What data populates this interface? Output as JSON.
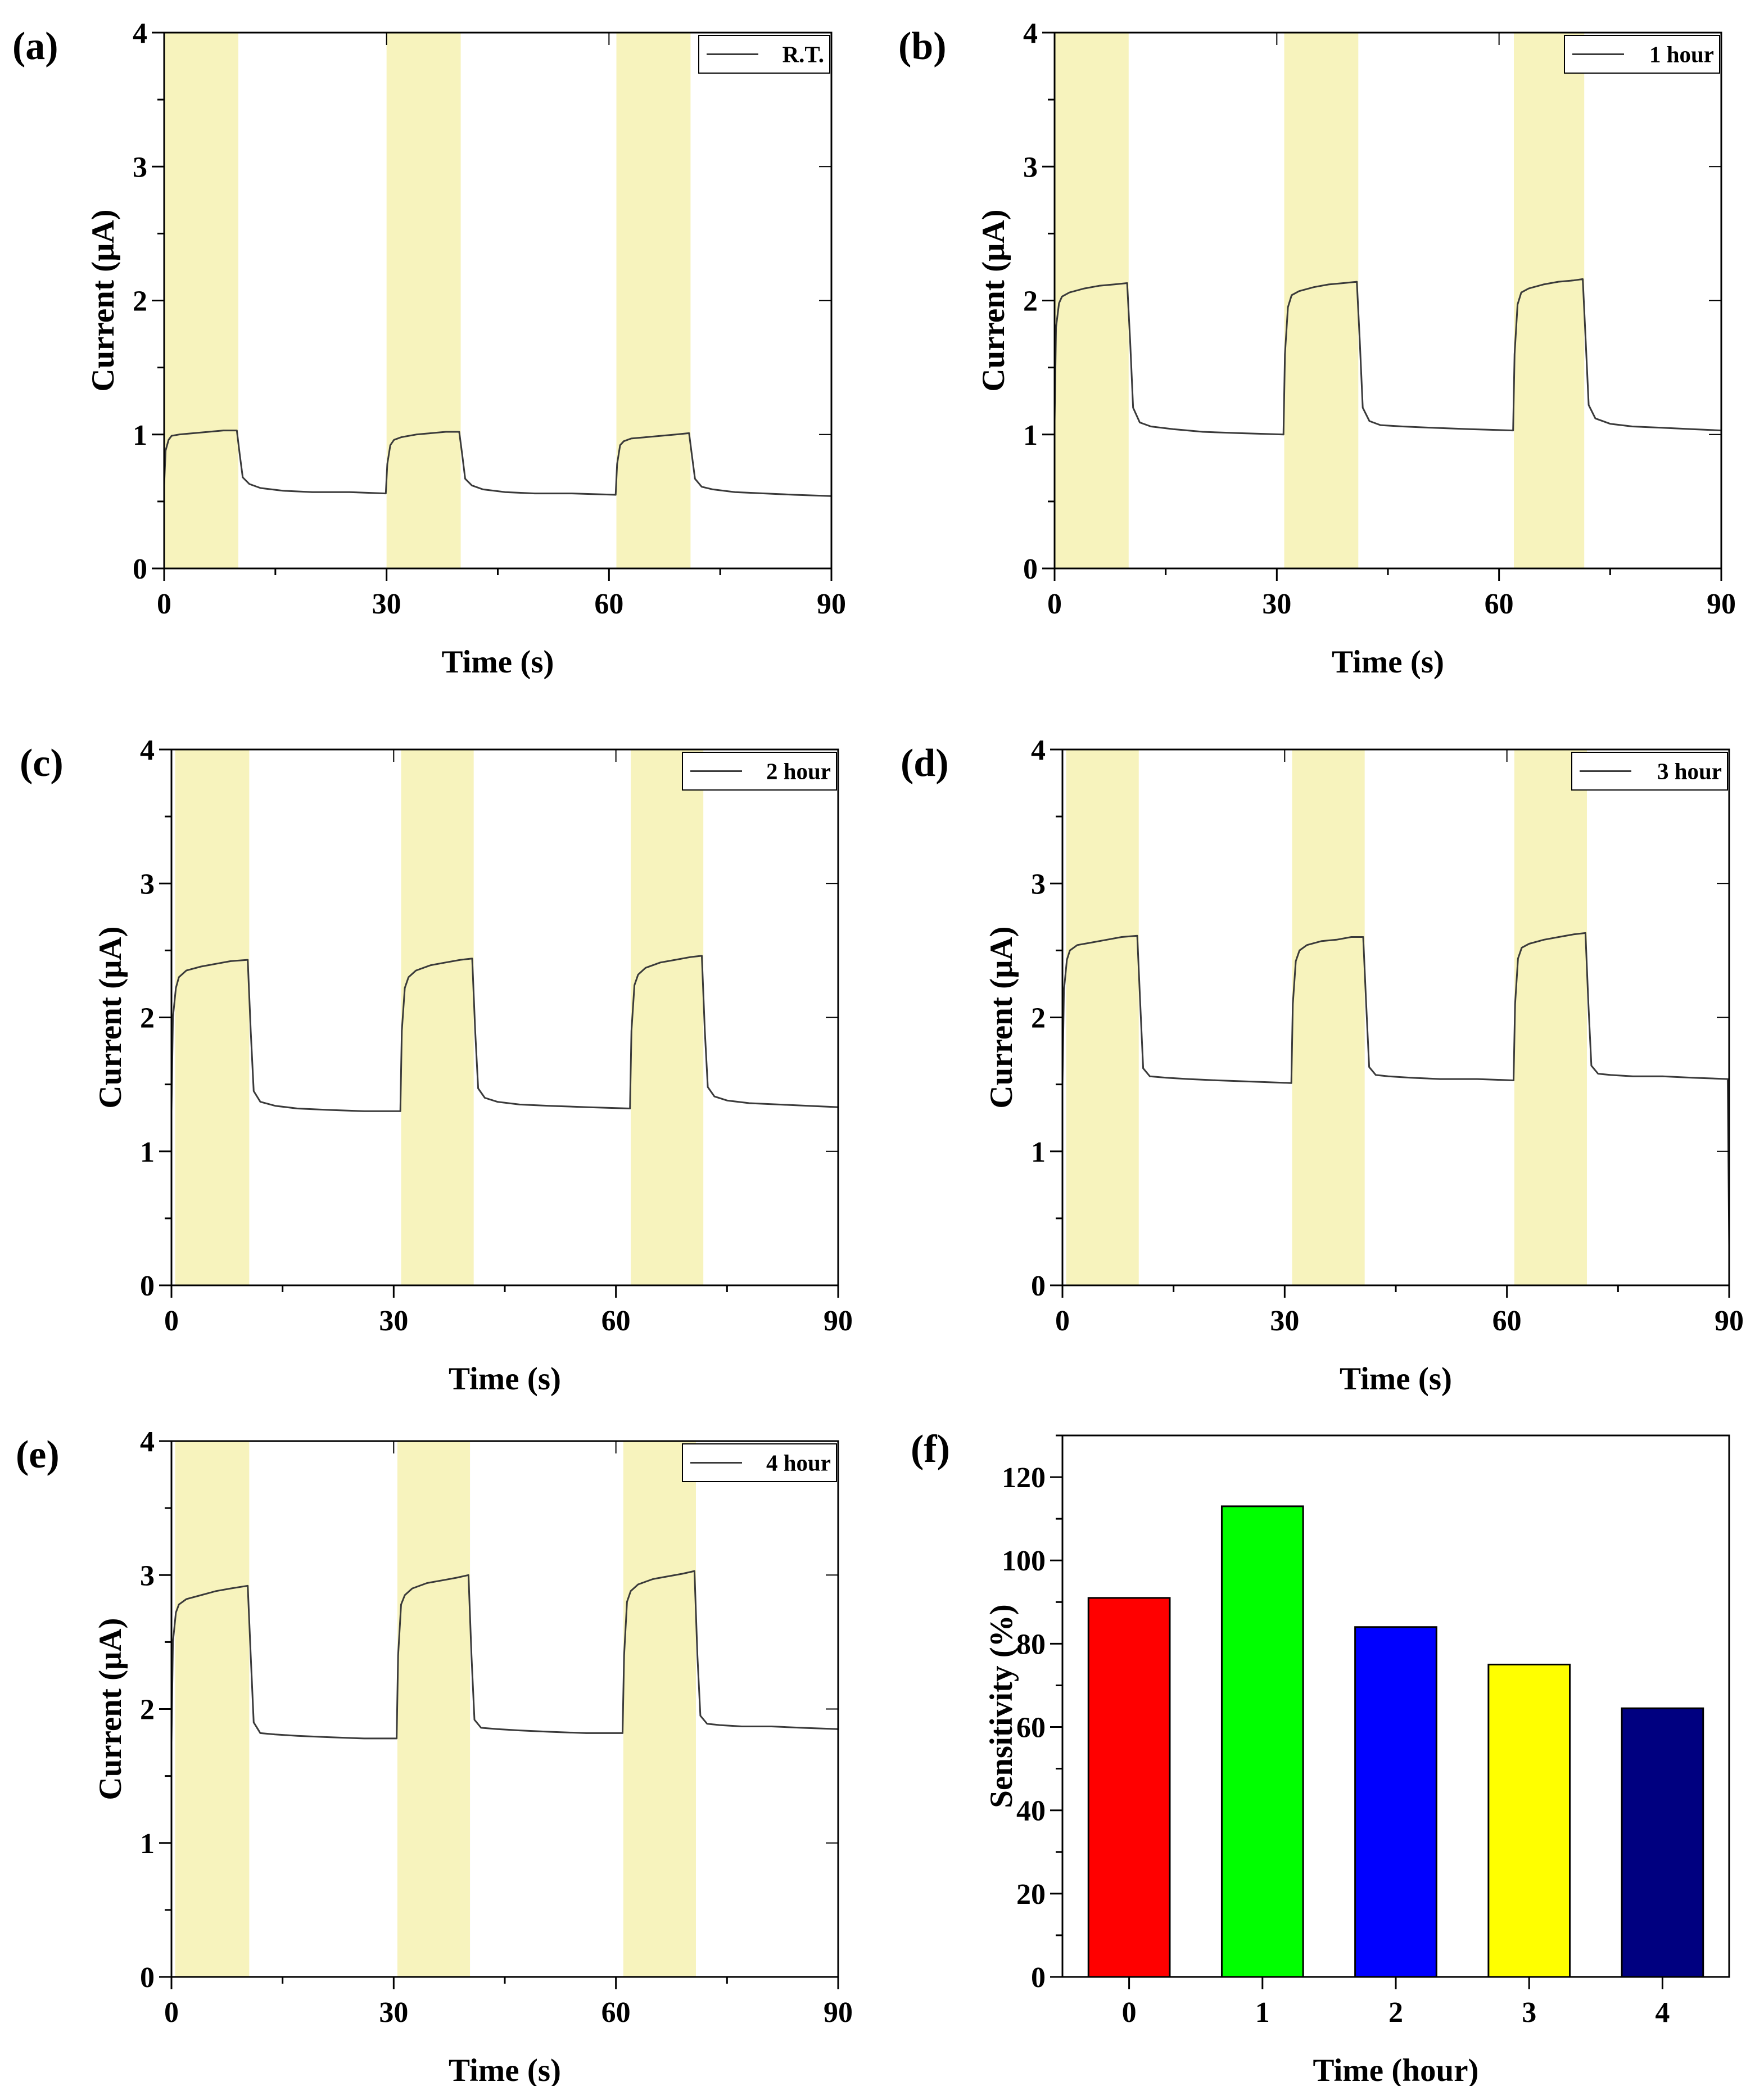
{
  "chart_data": [
    {
      "type": "line",
      "panel": "(a)",
      "legend": "R.T.",
      "xlabel": "Time (s)",
      "ylabel": "Current (μA)",
      "xlim": [
        0,
        90
      ],
      "ylim": [
        0,
        4
      ],
      "xticks": [
        "0",
        "30",
        "60",
        "90"
      ],
      "yticks": [
        "0",
        "1",
        "2",
        "3",
        "4"
      ],
      "light_on": [
        [
          0,
          10
        ],
        [
          30,
          40
        ],
        [
          61,
          71
        ]
      ],
      "series": [
        {
          "name": "R.T.",
          "x": [
            0,
            0.2,
            0.6,
            1,
            2,
            4,
            6,
            8,
            9.8,
            10.2,
            10.6,
            11.5,
            13,
            16,
            20,
            25,
            29.9,
            30.1,
            30.5,
            31,
            32,
            34,
            36,
            38,
            39.8,
            40.2,
            40.6,
            41.5,
            43,
            46,
            50,
            55,
            60.9,
            61.1,
            61.5,
            62,
            63,
            65,
            67,
            69,
            70.8,
            71.2,
            71.6,
            72.5,
            74,
            77,
            81,
            85,
            90
          ],
          "y": [
            0.62,
            0.88,
            0.96,
            0.99,
            1.0,
            1.01,
            1.02,
            1.03,
            1.03,
            0.85,
            0.68,
            0.63,
            0.6,
            0.58,
            0.57,
            0.57,
            0.56,
            0.78,
            0.92,
            0.96,
            0.98,
            1.0,
            1.01,
            1.02,
            1.02,
            0.85,
            0.67,
            0.62,
            0.59,
            0.57,
            0.56,
            0.56,
            0.55,
            0.78,
            0.92,
            0.95,
            0.97,
            0.98,
            0.99,
            1.0,
            1.01,
            0.84,
            0.67,
            0.61,
            0.59,
            0.57,
            0.56,
            0.55,
            0.54
          ]
        }
      ]
    },
    {
      "type": "line",
      "panel": "(b)",
      "legend": "1 hour",
      "xlabel": "Time (s)",
      "ylabel": "Current (μA)",
      "xlim": [
        0,
        90
      ],
      "ylim": [
        0,
        4
      ],
      "xticks": [
        "0",
        "30",
        "60",
        "90"
      ],
      "yticks": [
        "0",
        "1",
        "2",
        "3",
        "4"
      ],
      "light_on": [
        [
          0,
          10
        ],
        [
          31,
          41
        ],
        [
          62,
          71.5
        ]
      ],
      "series": [
        {
          "name": "1 hour",
          "x": [
            0,
            0.2,
            0.6,
            1,
            2,
            4,
            6,
            8,
            9.8,
            10.2,
            10.6,
            11.5,
            13,
            16,
            20,
            25,
            30.9,
            31.1,
            31.5,
            32,
            33,
            35,
            37,
            39,
            40.8,
            41.2,
            41.6,
            42.5,
            44,
            47,
            51,
            56,
            61.9,
            62.1,
            62.5,
            63,
            64,
            66,
            68,
            70,
            71.3,
            71.7,
            72.1,
            73,
            75,
            78,
            82,
            86,
            90
          ],
          "y": [
            1.1,
            1.8,
            1.98,
            2.03,
            2.06,
            2.09,
            2.11,
            2.12,
            2.13,
            1.7,
            1.2,
            1.09,
            1.06,
            1.04,
            1.02,
            1.01,
            1.0,
            1.6,
            1.95,
            2.04,
            2.07,
            2.1,
            2.12,
            2.13,
            2.14,
            1.7,
            1.2,
            1.1,
            1.07,
            1.06,
            1.05,
            1.04,
            1.03,
            1.6,
            1.97,
            2.06,
            2.09,
            2.12,
            2.14,
            2.15,
            2.16,
            1.7,
            1.22,
            1.12,
            1.08,
            1.06,
            1.05,
            1.04,
            1.03
          ]
        }
      ]
    },
    {
      "type": "line",
      "panel": "(c)",
      "legend": "2 hour",
      "xlabel": "Time (s)",
      "ylabel": "Current (μA)",
      "xlim": [
        0,
        90
      ],
      "ylim": [
        0,
        4
      ],
      "xticks": [
        "0",
        "30",
        "60",
        "90"
      ],
      "yticks": [
        "0",
        "1",
        "2",
        "3",
        "4"
      ],
      "light_on": [
        [
          0.5,
          10.5
        ],
        [
          31,
          40.8
        ],
        [
          62,
          71.8
        ]
      ],
      "series": [
        {
          "name": "2 hour",
          "x": [
            0,
            0.2,
            0.6,
            1,
            2,
            4,
            6,
            8,
            10.3,
            10.7,
            11.1,
            12,
            14,
            17,
            21,
            26,
            30.9,
            31.1,
            31.5,
            32,
            33,
            35,
            37,
            39,
            40.6,
            41,
            41.4,
            42.3,
            44,
            47,
            51,
            56,
            61.9,
            62.1,
            62.5,
            63,
            64,
            66,
            68,
            70,
            71.6,
            72,
            72.4,
            73.3,
            75,
            78,
            82,
            86,
            90
          ],
          "y": [
            1.3,
            2.0,
            2.22,
            2.3,
            2.35,
            2.38,
            2.4,
            2.42,
            2.43,
            1.9,
            1.45,
            1.37,
            1.34,
            1.32,
            1.31,
            1.3,
            1.3,
            1.9,
            2.22,
            2.3,
            2.35,
            2.39,
            2.41,
            2.43,
            2.44,
            1.9,
            1.47,
            1.4,
            1.37,
            1.35,
            1.34,
            1.33,
            1.32,
            1.9,
            2.24,
            2.32,
            2.37,
            2.41,
            2.43,
            2.45,
            2.46,
            1.9,
            1.48,
            1.41,
            1.38,
            1.36,
            1.35,
            1.34,
            1.33
          ]
        }
      ]
    },
    {
      "type": "line",
      "panel": "(d)",
      "legend": "3 hour",
      "xlabel": "Time (s)",
      "ylabel": "Current (μA)",
      "xlim": [
        0,
        90
      ],
      "ylim": [
        0,
        4
      ],
      "xticks": [
        "0",
        "30",
        "60",
        "90"
      ],
      "yticks": [
        "0",
        "1",
        "2",
        "3",
        "4"
      ],
      "light_on": [
        [
          0.5,
          10.3
        ],
        [
          31,
          40.8
        ],
        [
          61,
          70.8
        ]
      ],
      "series": [
        {
          "name": "3 hour",
          "x": [
            0,
            0.2,
            0.6,
            1,
            2,
            4,
            6,
            8,
            10.1,
            10.5,
            10.9,
            11.8,
            14,
            17,
            21,
            26,
            30.9,
            31.1,
            31.5,
            32,
            33,
            35,
            37,
            39,
            40.6,
            41,
            41.4,
            42.3,
            44,
            47,
            51,
            56,
            60.9,
            61.1,
            61.5,
            62,
            63,
            65,
            67,
            69,
            70.6,
            71,
            71.4,
            72.3,
            74,
            77,
            81,
            85,
            89.8,
            90
          ],
          "y": [
            1.5,
            2.2,
            2.43,
            2.5,
            2.54,
            2.56,
            2.58,
            2.6,
            2.61,
            2.1,
            1.62,
            1.56,
            1.55,
            1.54,
            1.53,
            1.52,
            1.51,
            2.1,
            2.42,
            2.5,
            2.54,
            2.57,
            2.58,
            2.6,
            2.6,
            2.1,
            1.63,
            1.57,
            1.56,
            1.55,
            1.54,
            1.54,
            1.53,
            2.1,
            2.44,
            2.52,
            2.55,
            2.58,
            2.6,
            2.62,
            2.63,
            2.1,
            1.64,
            1.58,
            1.57,
            1.56,
            1.56,
            1.55,
            1.54,
            0.3
          ]
        }
      ]
    },
    {
      "type": "line",
      "panel": "(e)",
      "legend": "4 hour",
      "xlabel": "Time (s)",
      "ylabel": "Current (μA)",
      "xlim": [
        0,
        90
      ],
      "ylim": [
        0,
        4
      ],
      "xticks": [
        "0",
        "30",
        "60",
        "90"
      ],
      "yticks": [
        "0",
        "1",
        "2",
        "3",
        "4"
      ],
      "light_on": [
        [
          0.5,
          10.5
        ],
        [
          30.5,
          40.3
        ],
        [
          61,
          70.8
        ]
      ],
      "series": [
        {
          "name": "4 hour",
          "x": [
            0,
            0.2,
            0.6,
            1,
            2,
            4,
            6,
            8,
            10.3,
            10.7,
            11.1,
            12,
            14,
            17,
            21,
            26,
            30.4,
            30.6,
            31,
            31.5,
            32.5,
            34.5,
            36.5,
            38.5,
            40.1,
            40.5,
            40.9,
            41.8,
            44,
            47,
            51,
            56,
            60.9,
            61.1,
            61.5,
            62,
            63,
            65,
            67,
            69,
            70.6,
            71,
            71.4,
            72.3,
            74,
            77,
            81,
            85,
            90
          ],
          "y": [
            1.75,
            2.5,
            2.72,
            2.78,
            2.82,
            2.85,
            2.88,
            2.9,
            2.92,
            2.4,
            1.9,
            1.82,
            1.81,
            1.8,
            1.79,
            1.78,
            1.78,
            2.4,
            2.78,
            2.85,
            2.9,
            2.94,
            2.96,
            2.98,
            3.0,
            2.4,
            1.92,
            1.86,
            1.85,
            1.84,
            1.83,
            1.82,
            1.82,
            2.4,
            2.8,
            2.88,
            2.93,
            2.97,
            2.99,
            3.01,
            3.03,
            2.4,
            1.95,
            1.89,
            1.88,
            1.87,
            1.87,
            1.86,
            1.85
          ]
        }
      ]
    },
    {
      "type": "bar",
      "panel": "(f)",
      "xlabel": "Time (hour)",
      "ylabel": "Sensitivity (%)",
      "categories": [
        "0",
        "1",
        "2",
        "3",
        "4"
      ],
      "values": [
        91,
        113,
        84,
        75,
        64.5
      ],
      "colors": [
        "#ff0000",
        "#00ff00",
        "#0000ff",
        "#ffff00",
        "#000080"
      ],
      "ylim": [
        0,
        130
      ],
      "yticks": [
        "0",
        "20",
        "40",
        "60",
        "80",
        "100",
        "120"
      ]
    }
  ],
  "style": {
    "highlight_color": "#f7f3bd",
    "line_color": "#3a3a3a"
  }
}
